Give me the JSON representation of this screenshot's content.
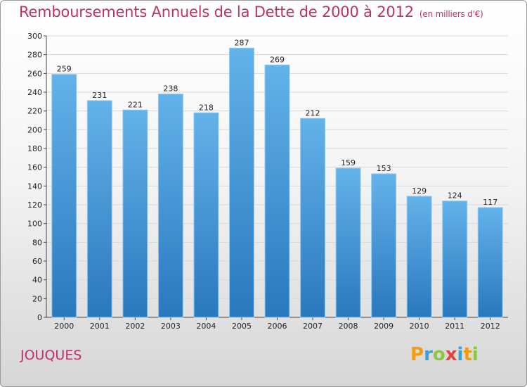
{
  "title": "Remboursements Annuels de la Dette de 2000 à 2012",
  "subtitle": "(en milliers d'€)",
  "town": "JOUQUES",
  "logo": {
    "text": "Proxiti",
    "letters": [
      {
        "ch": "P",
        "color": "#f39c12"
      },
      {
        "ch": "r",
        "color": "#3aa0d8"
      },
      {
        "ch": "o",
        "color": "#8dc63f"
      },
      {
        "ch": "x",
        "color": "#e8413c"
      },
      {
        "ch": "i",
        "color": "#3aa0d8"
      },
      {
        "ch": "t",
        "color": "#f39c12"
      },
      {
        "ch": "i",
        "color": "#8dc63f"
      }
    ]
  },
  "colors": {
    "bar_top": "#63b2ea",
    "bar_bottom": "#2a78bd",
    "accent": "#c0306a",
    "grid": "#d8d8d8"
  },
  "chart_data": {
    "type": "bar",
    "categories": [
      "2000",
      "2001",
      "2002",
      "2003",
      "2004",
      "2005",
      "2006",
      "2007",
      "2008",
      "2009",
      "2010",
      "2011",
      "2012"
    ],
    "values": [
      259,
      231,
      221,
      238,
      218,
      287,
      269,
      212,
      159,
      153,
      129,
      124,
      117
    ],
    "title": "Remboursements Annuels de la Dette de 2000 à 2012",
    "xlabel": "",
    "ylabel": "",
    "ylim": [
      0,
      300
    ],
    "yticks": [
      0,
      20,
      40,
      60,
      80,
      100,
      120,
      140,
      160,
      180,
      200,
      220,
      240,
      260,
      280,
      300
    ],
    "grid": true,
    "data_labels": true
  }
}
